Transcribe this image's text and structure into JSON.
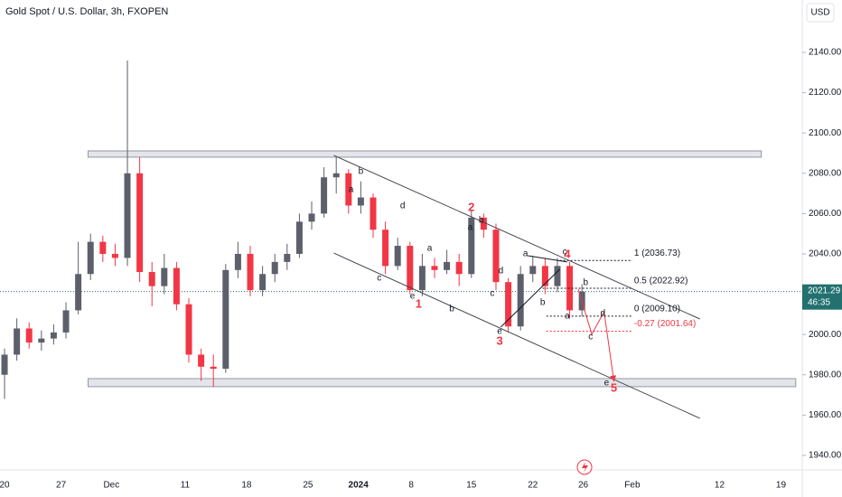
{
  "chart_data": {
    "type": "candlestick",
    "title": "Gold Spot / U.S. Dollar, 3h, FXOPEN",
    "currency": "USD",
    "x": [
      0,
      1,
      2,
      3,
      4,
      5,
      6,
      7,
      8,
      9,
      10,
      11,
      12,
      13,
      14,
      15,
      16,
      17,
      18,
      19,
      20,
      21,
      22,
      23,
      24,
      25,
      26,
      27,
      28,
      29,
      30,
      31,
      32,
      33,
      34,
      35,
      36,
      37,
      38,
      39,
      40,
      41,
      42,
      43,
      44,
      45,
      46,
      47
    ],
    "open": [
      1980,
      1990,
      2003,
      1996,
      1998,
      2001,
      2012,
      2030,
      2046,
      2040,
      2038,
      2080,
      2031,
      2024,
      2033,
      2015,
      1990,
      1984,
      1983,
      2032,
      2040,
      2022,
      2030,
      2036,
      2040,
      2056,
      2060,
      2078,
      2080,
      2064,
      2068,
      2052,
      2034,
      2044,
      2022,
      2034,
      2032,
      2036,
      2030,
      2058,
      2052,
      2026,
      2004,
      2030,
      2034,
      2024,
      2034,
      2012
    ],
    "high": [
      1993,
      2008,
      2006,
      2002,
      2005,
      2016,
      2046,
      2050,
      2049,
      2045,
      2136,
      2088,
      2036,
      2040,
      2036,
      2018,
      1993,
      1990,
      2035,
      2046,
      2044,
      2034,
      2040,
      2045,
      2060,
      2066,
      2083,
      2088,
      2082,
      2076,
      2070,
      2056,
      2048,
      2046,
      2040,
      2038,
      2042,
      2040,
      2062,
      2060,
      2055,
      2028,
      2034,
      2039,
      2038,
      2038,
      2036,
      2025
    ],
    "low": [
      1968,
      1987,
      1993,
      1992,
      1995,
      1998,
      2010,
      2027,
      2036,
      2034,
      2034,
      2026,
      2014,
      2020,
      2012,
      1986,
      1977,
      1974,
      1981,
      2028,
      2019,
      2019,
      2026,
      2032,
      2038,
      2052,
      2058,
      2070,
      2060,
      2060,
      2048,
      2030,
      2032,
      2020,
      2019,
      2028,
      2030,
      2024,
      2028,
      2048,
      2022,
      2001,
      2002,
      2026,
      2020,
      2021,
      2008,
      2009
    ],
    "close": [
      1990,
      2003,
      1996,
      1998,
      2001,
      2012,
      2030,
      2046,
      2040,
      2038,
      2080,
      2031,
      2024,
      2033,
      2015,
      1990,
      1984,
      1983,
      2032,
      2040,
      2022,
      2030,
      2036,
      2040,
      2056,
      2060,
      2078,
      2080,
      2064,
      2068,
      2052,
      2034,
      2044,
      2022,
      2034,
      2032,
      2036,
      2030,
      2058,
      2052,
      2026,
      2004,
      2030,
      2034,
      2024,
      2034,
      2012,
      2021.29
    ],
    "up_color": "#5d606b",
    "down_color": "#f23645",
    "xlim": [
      -0.37,
      64.93
    ],
    "ylim": [
      1932.8,
      2166.0
    ],
    "xticks": [
      {
        "value": 0,
        "label": "20"
      },
      {
        "value": 4.6,
        "label": "27"
      },
      {
        "value": 8.7,
        "label": "Dec"
      },
      {
        "value": 14.7,
        "label": "11"
      },
      {
        "value": 19.7,
        "label": "18"
      },
      {
        "value": 24.7,
        "label": "25"
      },
      {
        "value": 28.8,
        "label": "2024"
      },
      {
        "value": 33.1,
        "label": "8"
      },
      {
        "value": 38,
        "label": "15"
      },
      {
        "value": 43,
        "label": "22"
      },
      {
        "value": 47.1,
        "label": "26"
      },
      {
        "value": 51.1,
        "label": "Feb"
      },
      {
        "value": 58.2,
        "label": "12"
      },
      {
        "value": 63.2,
        "label": "19"
      }
    ],
    "yticks": [
      {
        "value": 1940,
        "label": "1940.00"
      },
      {
        "value": 1960,
        "label": "1960.00"
      },
      {
        "value": 1980,
        "label": "1980.00"
      },
      {
        "value": 2000,
        "label": "2000.00"
      },
      {
        "value": 2020,
        "label": "2020.00"
      },
      {
        "value": 2040,
        "label": "2040.00"
      },
      {
        "value": 2060,
        "label": "2060.00"
      },
      {
        "value": 2080,
        "label": "2080.00"
      },
      {
        "value": 2100,
        "label": "2100.00"
      },
      {
        "value": 2120,
        "label": "2120.00"
      },
      {
        "value": 2140,
        "label": "2140.00"
      }
    ],
    "last_price": 2021.29,
    "last_price_color": "#22706f",
    "countdown": "46:35",
    "zones": [
      {
        "x": [
          6.8,
          61.6
        ],
        "y": [
          2088.0,
          2091.1
        ]
      },
      {
        "x": [
          6.8,
          64.4
        ],
        "y": [
          1974.1,
          1978.1
        ]
      }
    ],
    "trendlines": [
      {
        "x": [
          26.8,
          56.6
        ],
        "y": [
          2088.9,
          2007.7
        ],
        "color": "#434651"
      },
      {
        "x": [
          26.8,
          56.6
        ],
        "y": [
          2040.4,
          1958.4
        ],
        "color": "#434651"
      },
      {
        "x": [
          40.4,
          45.2
        ],
        "y": [
          2003.7,
          2032.4
        ],
        "color": "#131722"
      },
      {
        "x": [
          42.6,
          45.8
        ],
        "y": [
          2039.1,
          2036.0
        ],
        "color": "#131722"
      },
      {
        "x": [
          46.7,
          47.8,
          48.8,
          49.6
        ],
        "y": [
          2022.5,
          2000.1,
          2011.3,
          1976.8
        ],
        "color": "#f23645"
      }
    ],
    "fib_levels": [
      {
        "value": 2036.73,
        "label": "1 (2036.73)",
        "x": [
          45.2,
          51.1
        ],
        "color": "#131722"
      },
      {
        "value": 2022.92,
        "label": "0.5 (2022.92)",
        "x": [
          43.8,
          51.1
        ],
        "color": "#131722"
      },
      {
        "value": 2009.1,
        "label": "0 (2009.10)",
        "x": [
          44.1,
          51.1
        ],
        "color": "#131722"
      },
      {
        "value": 2001.64,
        "label": "-0.27 (2001.64)",
        "x": [
          44.1,
          51.1
        ],
        "color": "#f23645"
      }
    ],
    "annotations": [
      {
        "text": "1",
        "x": 33.7,
        "y": 2014.9,
        "color": "#f23645"
      },
      {
        "text": "2",
        "x": 38.0,
        "y": 2062.9,
        "color": "#f23645"
      },
      {
        "text": "3",
        "x": 40.3,
        "y": 1996.5,
        "color": "#f23645"
      },
      {
        "text": "4",
        "x": 45.8,
        "y": 2039.6,
        "color": "#f23645"
      },
      {
        "text": "5",
        "x": 49.6,
        "y": 1973.2,
        "color": "#f23645"
      },
      {
        "text": "b",
        "x": 29.0,
        "y": 2080.8,
        "color": "#131722"
      },
      {
        "text": "a",
        "x": 28.2,
        "y": 2071.8,
        "color": "#131722"
      },
      {
        "text": "d",
        "x": 32.4,
        "y": 2063.8,
        "color": "#131722"
      },
      {
        "text": "a",
        "x": 34.6,
        "y": 2042.7,
        "color": "#131722"
      },
      {
        "text": "c",
        "x": 30.5,
        "y": 2027.9,
        "color": "#131722"
      },
      {
        "text": "e",
        "x": 33.2,
        "y": 2019.0,
        "color": "#131722"
      },
      {
        "text": "b",
        "x": 36.4,
        "y": 2012.6,
        "color": "#131722"
      },
      {
        "text": "a",
        "x": 37.9,
        "y": 2053.0,
        "color": "#131722"
      },
      {
        "text": "b",
        "x": 38.8,
        "y": 2056.6,
        "color": "#131722"
      },
      {
        "text": "d",
        "x": 40.4,
        "y": 2031.5,
        "color": "#131722"
      },
      {
        "text": "c",
        "x": 39.7,
        "y": 2020.3,
        "color": "#131722"
      },
      {
        "text": "e",
        "x": 40.3,
        "y": 2001.4,
        "color": "#131722"
      },
      {
        "text": "a",
        "x": 42.4,
        "y": 2040.0,
        "color": "#131722"
      },
      {
        "text": "c",
        "x": 45.6,
        "y": 2040.9,
        "color": "#131722"
      },
      {
        "text": "b",
        "x": 43.8,
        "y": 2015.8,
        "color": "#131722"
      },
      {
        "text": "a",
        "x": 45.8,
        "y": 2009.1,
        "color": "#131722"
      },
      {
        "text": "b",
        "x": 47.3,
        "y": 2025.7,
        "color": "#131722"
      },
      {
        "text": "d",
        "x": 48.7,
        "y": 2010.4,
        "color": "#131722"
      },
      {
        "text": "c",
        "x": 47.7,
        "y": 1998.7,
        "color": "#131722"
      },
      {
        "text": "e",
        "x": 49.0,
        "y": 1975.9,
        "color": "#131722"
      }
    ]
  }
}
